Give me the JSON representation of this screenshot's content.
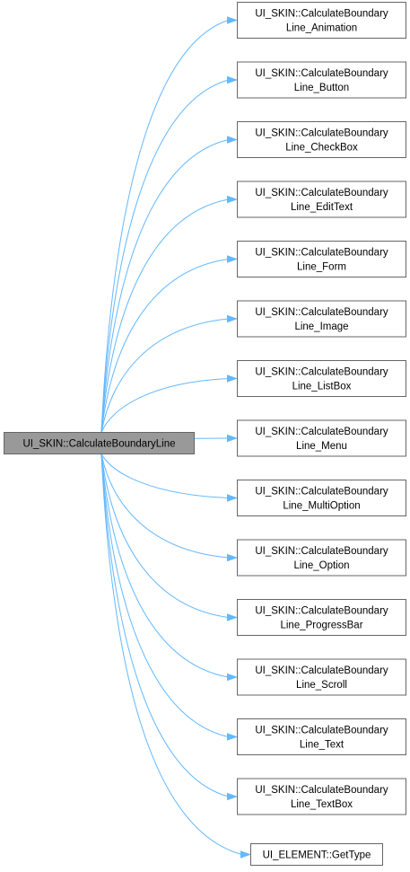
{
  "root": {
    "label": "UI_SKIN::CalculateBoundaryLine"
  },
  "callees": [
    {
      "line1": "UI_SKIN::CalculateBoundary",
      "line2": "Line_Animation"
    },
    {
      "line1": "UI_SKIN::CalculateBoundary",
      "line2": "Line_Button"
    },
    {
      "line1": "UI_SKIN::CalculateBoundary",
      "line2": "Line_CheckBox"
    },
    {
      "line1": "UI_SKIN::CalculateBoundary",
      "line2": "Line_EditText"
    },
    {
      "line1": "UI_SKIN::CalculateBoundary",
      "line2": "Line_Form"
    },
    {
      "line1": "UI_SKIN::CalculateBoundary",
      "line2": "Line_Image"
    },
    {
      "line1": "UI_SKIN::CalculateBoundary",
      "line2": "Line_ListBox"
    },
    {
      "line1": "UI_SKIN::CalculateBoundary",
      "line2": "Line_Menu"
    },
    {
      "line1": "UI_SKIN::CalculateBoundary",
      "line2": "Line_MultiOption"
    },
    {
      "line1": "UI_SKIN::CalculateBoundary",
      "line2": "Line_Option"
    },
    {
      "line1": "UI_SKIN::CalculateBoundary",
      "line2": "Line_ProgressBar"
    },
    {
      "line1": "UI_SKIN::CalculateBoundary",
      "line2": "Line_Scroll"
    },
    {
      "line1": "UI_SKIN::CalculateBoundary",
      "line2": "Line_Text"
    },
    {
      "line1": "UI_SKIN::CalculateBoundary",
      "line2": "Line_TextBox"
    },
    {
      "line1": "UI_ELEMENT::GetType"
    }
  ],
  "colors": {
    "edge": "#63b8ff",
    "root_fill": "#999999",
    "node_fill": "#ffffff",
    "node_border": "#666666"
  }
}
